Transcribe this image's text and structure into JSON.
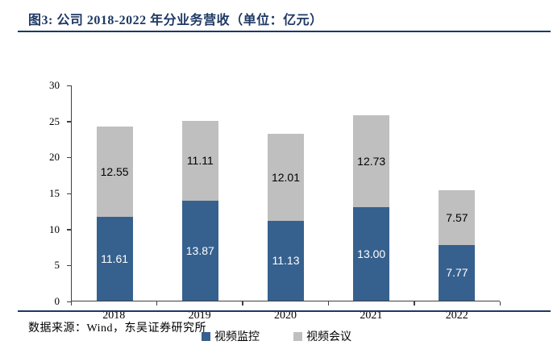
{
  "title": "图3:  公司 2018-2022 年分业务营收（单位：亿元）",
  "footer": {
    "source_label": "数据来源：Wind，东吴证券研究所"
  },
  "colors": {
    "title": "#1F3864",
    "divider": "#1F3864",
    "axis": "#404040",
    "bar_blue": "#36618E",
    "bar_gray": "#BFBFBF"
  },
  "chart_data": {
    "type": "bar",
    "stacked": true,
    "title": "公司 2018-2022 年分业务营收",
    "unit": "亿元",
    "categories": [
      "2018",
      "2019",
      "2020",
      "2021",
      "2022"
    ],
    "series": [
      {
        "name": "视频监控",
        "color": "#36618E",
        "label_color": "#FFFFFF",
        "values": [
          11.61,
          13.87,
          11.13,
          13.0,
          7.77
        ]
      },
      {
        "name": "视频会议",
        "color": "#BFBFBF",
        "label_color": "#000000",
        "values": [
          12.55,
          11.11,
          12.01,
          12.73,
          7.57
        ]
      }
    ],
    "totals": [
      24.16,
      24.98,
      23.14,
      25.73,
      15.34
    ],
    "ylim": [
      0,
      30
    ],
    "ytick_step": 5,
    "grid": false,
    "legend_position": "bottom",
    "value_label_decimals": 2
  }
}
